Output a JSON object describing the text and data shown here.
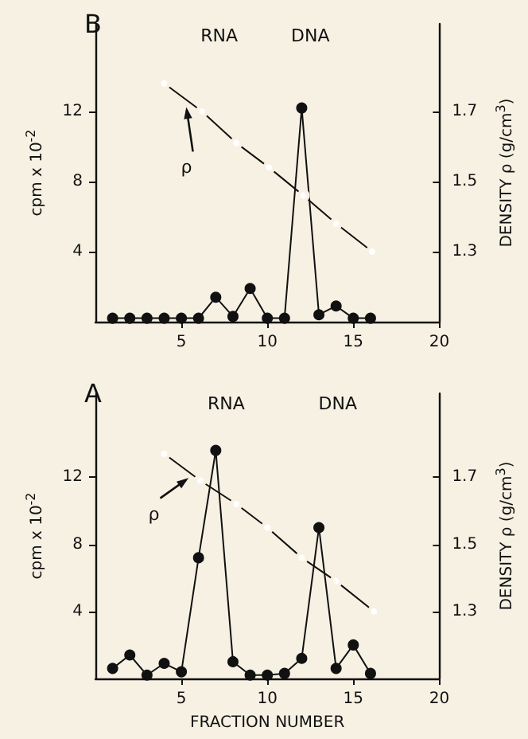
{
  "chart_data": [
    {
      "type": "line",
      "title": "B",
      "ylabel": "cpm x 10$^{-2}$",
      "y2label": "DENSITY ρ (g/cm$^{3}$)",
      "annotations": [
        "RNA",
        "DNA",
        "ρ"
      ],
      "xlim": [
        0,
        20
      ],
      "xticks": [
        5,
        10,
        15,
        20
      ],
      "ylim": [
        0,
        17
      ],
      "yticks": [
        4,
        8,
        12
      ],
      "y2lim": [
        1.1,
        1.95
      ],
      "y2ticks": [
        1.3,
        1.5,
        1.7
      ],
      "marker": "circle",
      "line_style": "solid",
      "series": [
        {
          "color": "#111111",
          "x": [
            1,
            2,
            3,
            4,
            5,
            6,
            7,
            8,
            9,
            10,
            11,
            12,
            13,
            14,
            15,
            16
          ],
          "values": [
            0.2,
            0.2,
            0.2,
            0.2,
            0.2,
            0.2,
            1.4,
            0.3,
            1.9,
            0.2,
            0.2,
            12.2,
            0.4,
            0.9,
            0.2,
            0.2
          ]
        },
        {
          "color": "#111111",
          "axis": "y2",
          "x": [
            4,
            6.2,
            8.2,
            10.1,
            12.1,
            14,
            16.1
          ],
          "values": [
            1.78,
            1.7,
            1.61,
            1.54,
            1.46,
            1.38,
            1.3
          ]
        }
      ]
    },
    {
      "type": "line",
      "title": "A",
      "xlabel": "FRACTION NUMBER",
      "ylabel": "cpm x 10$^{-2}$",
      "y2label": "DENSITY ρ (g/cm$^{3}$)",
      "annotations": [
        "RNA",
        "DNA",
        "ρ"
      ],
      "xlim": [
        0,
        20
      ],
      "xticks": [
        5,
        10,
        15,
        20
      ],
      "ylim": [
        0,
        17
      ],
      "yticks": [
        4,
        8,
        12
      ],
      "y2lim": [
        1.1,
        1.95
      ],
      "y2ticks": [
        1.3,
        1.5,
        1.7
      ],
      "marker": "circle",
      "line_style": "solid",
      "series": [
        {
          "color": "#111111",
          "x": [
            1,
            2,
            3,
            4,
            5,
            6,
            7,
            8,
            9,
            10,
            11,
            12,
            13,
            14,
            15,
            16
          ],
          "values": [
            0.6,
            1.4,
            0.2,
            0.9,
            0.4,
            7.2,
            13.6,
            1.0,
            0.2,
            0.2,
            0.3,
            1.2,
            9.0,
            0.6,
            2.0,
            0.3
          ]
        },
        {
          "color": "#111111",
          "axis": "y2",
          "x": [
            4,
            6.1,
            8.2,
            10,
            12,
            14,
            16.2
          ],
          "values": [
            1.77,
            1.69,
            1.62,
            1.55,
            1.46,
            1.39,
            1.3
          ]
        }
      ]
    }
  ]
}
